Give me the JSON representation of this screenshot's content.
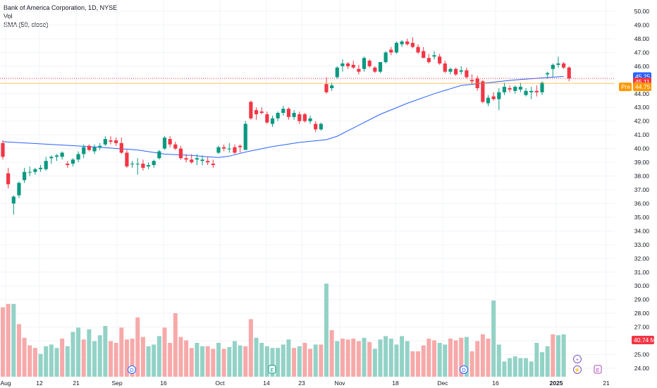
{
  "legend": {
    "title": "Bank of America Corporation, 1D, NYSE",
    "vol": "Vol",
    "sma": "SMA (50, close)"
  },
  "chart_data": {
    "type": "candlestick",
    "price_axis": {
      "min": 24.0,
      "max": 50.0,
      "step": 1.0,
      "ticks": [
        "50.00",
        "49.00",
        "48.00",
        "47.00",
        "46.00",
        "45.00",
        "44.00",
        "43.00",
        "42.00",
        "41.00",
        "40.00",
        "39.00",
        "38.00",
        "37.00",
        "36.00",
        "35.00",
        "34.00",
        "33.00",
        "32.00",
        "31.00",
        "30.00",
        "29.00",
        "28.00",
        "27.00",
        "26.00",
        "25.00",
        "24.00"
      ]
    },
    "time_axis": [
      "Aug",
      "12",
      "21",
      "Sep",
      "16",
      "Oct",
      "14",
      "23",
      "Nov",
      "18",
      "Dec",
      "16",
      "2025",
      "21"
    ],
    "candles": [
      [
        40.4,
        40.6,
        39.2,
        39.4
      ],
      [
        38.2,
        38.6,
        37.1,
        37.4
      ],
      [
        36.0,
        36.6,
        35.2,
        36.5
      ],
      [
        36.6,
        37.6,
        36.4,
        37.5
      ],
      [
        37.7,
        38.6,
        37.5,
        38.3
      ],
      [
        38.3,
        38.7,
        38.0,
        38.3
      ],
      [
        38.3,
        38.6,
        38.1,
        38.5
      ],
      [
        38.5,
        38.8,
        38.3,
        38.6
      ],
      [
        38.5,
        39.4,
        38.4,
        39.1
      ],
      [
        39.3,
        39.5,
        38.9,
        39.4
      ],
      [
        39.4,
        39.6,
        39.1,
        39.5
      ],
      [
        39.4,
        39.8,
        39.2,
        39.7
      ],
      [
        38.9,
        39.1,
        38.6,
        38.8
      ],
      [
        38.9,
        39.3,
        38.7,
        39.2
      ],
      [
        39.2,
        39.8,
        39.0,
        39.6
      ],
      [
        39.6,
        40.3,
        39.3,
        40.1
      ],
      [
        40.2,
        40.3,
        39.8,
        39.9
      ],
      [
        39.8,
        40.3,
        39.6,
        40.1
      ],
      [
        40.1,
        40.4,
        39.9,
        40.2
      ],
      [
        40.3,
        40.9,
        40.2,
        40.7
      ],
      [
        40.6,
        40.9,
        40.3,
        40.5
      ],
      [
        40.6,
        40.8,
        40.2,
        40.4
      ],
      [
        40.4,
        40.8,
        39.6,
        39.7
      ],
      [
        39.7,
        39.9,
        38.6,
        38.7
      ],
      [
        38.9,
        39.1,
        38.6,
        38.9
      ],
      [
        38.9,
        39.3,
        38.1,
        38.9
      ],
      [
        38.9,
        39.2,
        38.4,
        38.6
      ],
      [
        38.7,
        39.0,
        38.5,
        38.8
      ],
      [
        38.8,
        39.2,
        38.6,
        39.1
      ],
      [
        39.3,
        39.9,
        39.2,
        39.8
      ],
      [
        40.0,
        40.9,
        39.9,
        40.8
      ],
      [
        40.7,
        40.9,
        40.1,
        40.3
      ],
      [
        40.3,
        40.5,
        39.9,
        40.0
      ],
      [
        40.0,
        40.2,
        39.2,
        39.3
      ],
      [
        39.3,
        39.6,
        39.0,
        39.2
      ],
      [
        39.2,
        39.6,
        38.9,
        39.0
      ],
      [
        39.2,
        39.6,
        38.8,
        39.3
      ],
      [
        39.1,
        39.5,
        38.8,
        39.2
      ],
      [
        39.1,
        39.4,
        38.8,
        39.0
      ],
      [
        38.9,
        39.2,
        38.6,
        38.8
      ],
      [
        39.7,
        40.2,
        39.6,
        40.1
      ],
      [
        40.1,
        40.3,
        39.8,
        40.0
      ],
      [
        40.0,
        40.4,
        39.7,
        40.0
      ],
      [
        40.1,
        40.3,
        39.6,
        39.7
      ],
      [
        40.2,
        40.3,
        39.7,
        40.1
      ],
      [
        39.9,
        42.0,
        39.9,
        41.8
      ],
      [
        43.4,
        43.5,
        42.1,
        42.2
      ],
      [
        42.8,
        43.0,
        42.1,
        42.5
      ],
      [
        42.7,
        43.0,
        42.5,
        42.6
      ],
      [
        42.5,
        42.7,
        41.8,
        41.9
      ],
      [
        41.8,
        42.4,
        41.6,
        42.2
      ],
      [
        42.2,
        42.7,
        42.0,
        42.6
      ],
      [
        42.6,
        43.1,
        42.4,
        42.9
      ],
      [
        42.9,
        43.0,
        42.1,
        42.3
      ],
      [
        42.3,
        42.8,
        42.1,
        42.6
      ],
      [
        42.5,
        42.7,
        41.8,
        42.0
      ],
      [
        42.5,
        42.6,
        41.9,
        42.0
      ],
      [
        42.0,
        42.4,
        41.8,
        42.2
      ],
      [
        41.8,
        42.0,
        41.2,
        41.4
      ],
      [
        41.4,
        41.9,
        41.3,
        41.8
      ],
      [
        44.7,
        45.2,
        44.0,
        44.1
      ],
      [
        44.4,
        44.8,
        44.2,
        44.6
      ],
      [
        45.2,
        46.0,
        45.1,
        45.9
      ],
      [
        46.0,
        46.5,
        45.6,
        46.2
      ],
      [
        46.2,
        46.3,
        45.8,
        46.0
      ],
      [
        46.1,
        46.4,
        45.8,
        45.9
      ],
      [
        45.8,
        46.1,
        45.4,
        45.6
      ],
      [
        45.8,
        46.7,
        45.6,
        46.6
      ],
      [
        46.4,
        46.5,
        45.9,
        46.0
      ],
      [
        45.9,
        46.0,
        45.5,
        45.6
      ],
      [
        45.6,
        46.3,
        45.5,
        46.3
      ],
      [
        46.3,
        47.1,
        46.2,
        47.0
      ],
      [
        47.2,
        47.4,
        46.8,
        47.0
      ],
      [
        47.0,
        47.8,
        46.9,
        47.7
      ],
      [
        47.6,
        47.9,
        47.4,
        47.8
      ],
      [
        47.8,
        48.0,
        47.5,
        47.6
      ],
      [
        47.7,
        48.1,
        47.3,
        47.4
      ],
      [
        47.4,
        47.6,
        46.9,
        47.0
      ],
      [
        47.1,
        47.4,
        46.6,
        46.6
      ],
      [
        46.6,
        46.9,
        46.2,
        46.3
      ],
      [
        46.7,
        47.1,
        46.5,
        46.8
      ],
      [
        46.7,
        46.9,
        46.1,
        46.2
      ],
      [
        46.2,
        46.4,
        45.5,
        45.6
      ],
      [
        45.6,
        45.9,
        45.4,
        45.8
      ],
      [
        45.8,
        45.9,
        45.3,
        45.4
      ],
      [
        45.6,
        46.0,
        45.4,
        45.7
      ],
      [
        45.7,
        45.9,
        45.1,
        45.2
      ],
      [
        45.0,
        45.4,
        44.7,
        44.9
      ],
      [
        45.1,
        45.3,
        44.2,
        44.4
      ],
      [
        44.9,
        45.0,
        43.3,
        43.4
      ],
      [
        43.3,
        43.9,
        43.1,
        43.7
      ],
      [
        43.8,
        44.1,
        43.5,
        43.6
      ],
      [
        43.6,
        44.4,
        42.8,
        44.1
      ],
      [
        44.1,
        44.8,
        43.9,
        44.5
      ],
      [
        44.4,
        44.6,
        44.1,
        44.3
      ],
      [
        44.2,
        44.6,
        44.0,
        44.5
      ],
      [
        44.3,
        44.8,
        44.1,
        44.5
      ],
      [
        43.9,
        44.4,
        43.8,
        44.2
      ],
      [
        44.1,
        44.5,
        43.6,
        44.2
      ],
      [
        44.2,
        44.6,
        43.8,
        44.1
      ],
      [
        44.1,
        44.9,
        43.9,
        44.8
      ],
      [
        45.4,
        45.6,
        45.1,
        45.5
      ],
      [
        45.8,
        46.2,
        45.2,
        46.1
      ],
      [
        46.1,
        46.7,
        45.9,
        46.2
      ],
      [
        46.2,
        46.3,
        45.8,
        45.9
      ],
      [
        45.9,
        46.0,
        44.9,
        45.1
      ]
    ],
    "volume": [
      [
        0.82,
        "down"
      ],
      [
        0.86,
        "down"
      ],
      [
        0.86,
        "up"
      ],
      [
        0.62,
        "down"
      ],
      [
        0.46,
        "down"
      ],
      [
        0.37,
        "down"
      ],
      [
        0.34,
        "down"
      ],
      [
        0.27,
        "up"
      ],
      [
        0.36,
        "up"
      ],
      [
        0.38,
        "up"
      ],
      [
        0.34,
        "up"
      ],
      [
        0.45,
        "down"
      ],
      [
        0.36,
        "up"
      ],
      [
        0.53,
        "up"
      ],
      [
        0.58,
        "up"
      ],
      [
        0.44,
        "down"
      ],
      [
        0.56,
        "up"
      ],
      [
        0.42,
        "up"
      ],
      [
        0.49,
        "up"
      ],
      [
        0.6,
        "up"
      ],
      [
        0.42,
        "down"
      ],
      [
        0.4,
        "down"
      ],
      [
        0.58,
        "down"
      ],
      [
        0.44,
        "down"
      ],
      [
        0.45,
        "down"
      ],
      [
        0.7,
        "down"
      ],
      [
        0.47,
        "down"
      ],
      [
        0.36,
        "up"
      ],
      [
        0.38,
        "up"
      ],
      [
        0.48,
        "up"
      ],
      [
        0.58,
        "down"
      ],
      [
        0.4,
        "down"
      ],
      [
        0.75,
        "down"
      ],
      [
        0.47,
        "down"
      ],
      [
        0.43,
        "down"
      ],
      [
        0.34,
        "down"
      ],
      [
        0.4,
        "up"
      ],
      [
        0.36,
        "up"
      ],
      [
        0.36,
        "down"
      ],
      [
        0.33,
        "down"
      ],
      [
        0.4,
        "up"
      ],
      [
        0.33,
        "down"
      ],
      [
        0.35,
        "up"
      ],
      [
        0.42,
        "up"
      ],
      [
        0.37,
        "up"
      ],
      [
        0.36,
        "down"
      ],
      [
        0.68,
        "down"
      ],
      [
        0.46,
        "up"
      ],
      [
        0.4,
        "up"
      ],
      [
        0.36,
        "up"
      ],
      [
        0.34,
        "up"
      ],
      [
        0.34,
        "up"
      ],
      [
        0.38,
        "up"
      ],
      [
        0.44,
        "up"
      ],
      [
        0.34,
        "down"
      ],
      [
        0.36,
        "up"
      ],
      [
        0.4,
        "down"
      ],
      [
        0.33,
        "down"
      ],
      [
        0.38,
        "up"
      ],
      [
        0.38,
        "down"
      ],
      [
        1.1,
        "up"
      ],
      [
        0.55,
        "down"
      ],
      [
        0.42,
        "up"
      ],
      [
        0.45,
        "down"
      ],
      [
        0.44,
        "down"
      ],
      [
        0.45,
        "down"
      ],
      [
        0.42,
        "down"
      ],
      [
        0.46,
        "up"
      ],
      [
        0.41,
        "down"
      ],
      [
        0.33,
        "up"
      ],
      [
        0.44,
        "up"
      ],
      [
        0.48,
        "up"
      ],
      [
        0.45,
        "up"
      ],
      [
        0.38,
        "up"
      ],
      [
        0.48,
        "up"
      ],
      [
        0.42,
        "up"
      ],
      [
        0.3,
        "down"
      ],
      [
        0.3,
        "down"
      ],
      [
        0.37,
        "down"
      ],
      [
        0.45,
        "down"
      ],
      [
        0.43,
        "down"
      ],
      [
        0.4,
        "up"
      ],
      [
        0.38,
        "up"
      ],
      [
        0.45,
        "down"
      ],
      [
        0.43,
        "down"
      ],
      [
        0.46,
        "down"
      ],
      [
        0.47,
        "up"
      ],
      [
        0.3,
        "down"
      ],
      [
        0.42,
        "down"
      ],
      [
        0.5,
        "down"
      ],
      [
        0.45,
        "down"
      ],
      [
        0.9,
        "up"
      ],
      [
        0.38,
        "up"
      ],
      [
        0.18,
        "up"
      ],
      [
        0.22,
        "up"
      ],
      [
        0.24,
        "up"
      ],
      [
        0.22,
        "up"
      ],
      [
        0.22,
        "up"
      ],
      [
        0.18,
        "up"
      ],
      [
        0.4,
        "up"
      ],
      [
        0.29,
        "up"
      ],
      [
        0.36,
        "up"
      ],
      [
        0.5,
        "down"
      ],
      [
        0.49,
        "up"
      ],
      [
        0.5,
        "up"
      ]
    ],
    "volume_label": "40.74 M",
    "sma": [
      [
        0,
        40.5
      ],
      [
        9,
        40.3
      ],
      [
        18,
        40.1
      ],
      [
        25,
        39.9
      ],
      [
        30,
        39.6
      ],
      [
        35,
        39.5
      ],
      [
        38,
        39.4
      ],
      [
        40,
        39.35
      ],
      [
        42,
        39.45
      ],
      [
        45,
        39.75
      ],
      [
        50,
        40.15
      ],
      [
        55,
        40.45
      ],
      [
        60,
        40.65
      ],
      [
        62,
        40.9
      ],
      [
        65,
        41.5
      ],
      [
        70,
        42.5
      ],
      [
        75,
        43.3
      ],
      [
        80,
        44.0
      ],
      [
        85,
        44.6
      ],
      [
        90,
        44.8
      ],
      [
        95,
        45.0
      ],
      [
        100,
        45.15
      ],
      [
        104,
        45.25
      ]
    ],
    "tags": {
      "current_value": "45.25",
      "prev_line_value": "45.11",
      "pre_label": "Pre",
      "pre_value": "44.75"
    },
    "event_markers": [
      {
        "label": "D",
        "color": "#2962ff",
        "index": 30
      },
      {
        "label": "E",
        "color": "#089981",
        "index": 63
      },
      {
        "label": "D",
        "color": "#2962ff",
        "index": 108
      }
    ],
    "colors": {
      "up": "#089981",
      "down": "#f23645",
      "vol_up": "#93d2c6",
      "vol_down": "#f7a9a9",
      "sma": "#2962ff",
      "grid": "#f0f3fa",
      "pre": "#ff9800",
      "last": "#2962ff"
    }
  }
}
